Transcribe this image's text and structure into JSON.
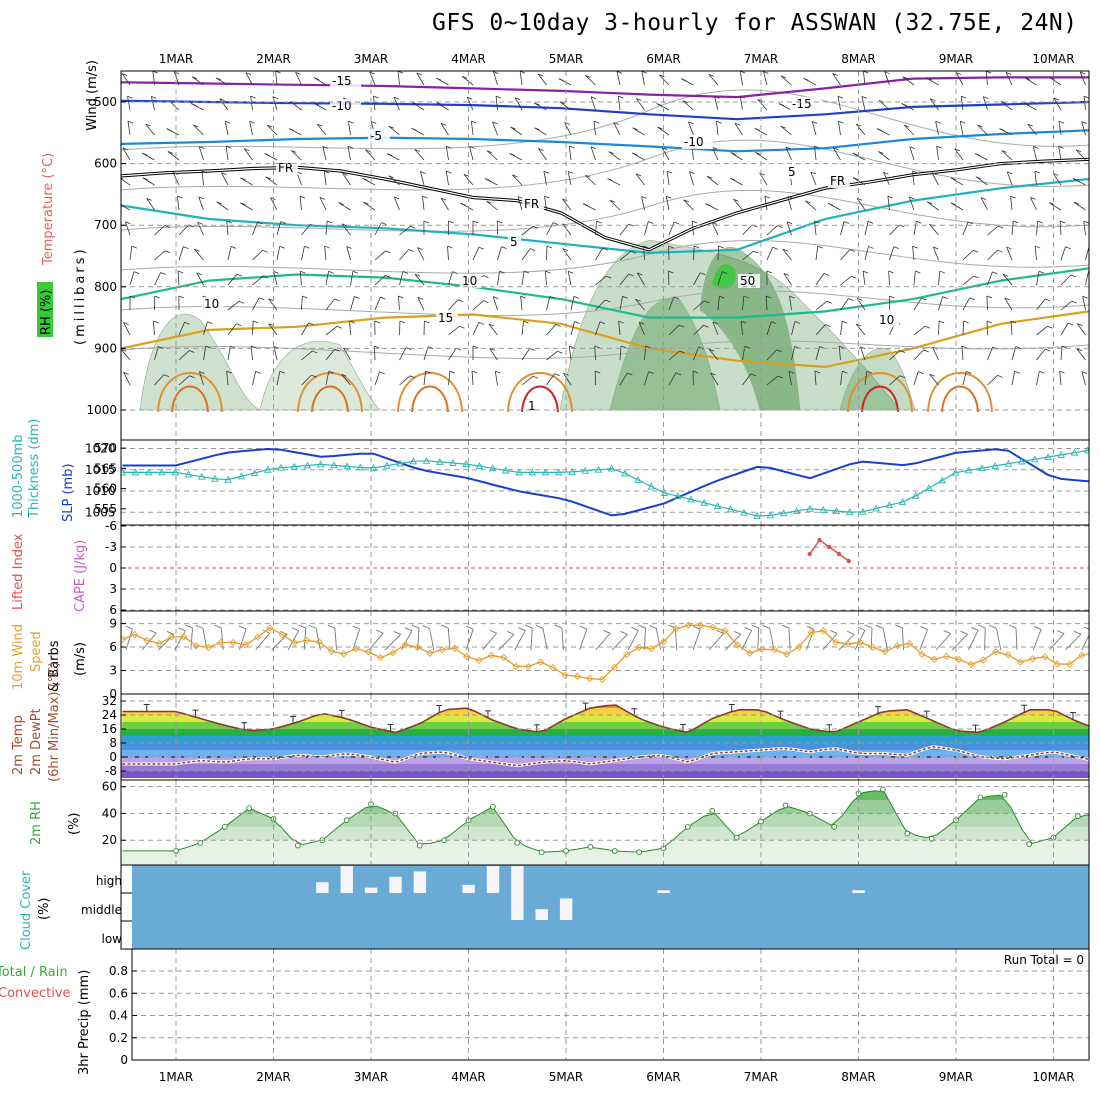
{
  "title": "GFS 0~10day 3-hourly for ASSWAN (32.75E, 24N)",
  "day_labels": [
    "1MAR",
    "2MAR",
    "3MAR",
    "4MAR",
    "5MAR",
    "6MAR",
    "7MAR",
    "8MAR",
    "9MAR",
    "10MAR"
  ],
  "colors": {
    "slp": "#1a3fcc",
    "thickness": "#2ab5b5",
    "wind10m": "#e8a030",
    "dewpoint": "#8b4a3a",
    "rh2m": "#3aa83a",
    "cloud_bg": "#6aabd6",
    "cloud_fill": "#f4f4f9",
    "lifted_index": "#e05050"
  },
  "panels": {
    "upper": {
      "labels": [
        "Wind (m/s)",
        "Temperature (°C)",
        "RH (%)",
        "(millibars)"
      ],
      "ticks": [
        "500",
        "600",
        "700",
        "800",
        "900",
        "1000"
      ],
      "contour_labels": {
        "fr": "FR",
        "t_minus15": "-15",
        "t_minus10": "-10",
        "t_minus5": "-5",
        "t_5": "5",
        "t_10": "10",
        "t_15": "15",
        "rh_10": "10",
        "rh_50": "50",
        "t_1": "1"
      }
    },
    "slp": {
      "labels": [
        "1000-500mb",
        "Thickness (dm)",
        "SLP (mb)"
      ],
      "left_ticks": [
        "570",
        "565",
        "560",
        "555"
      ],
      "right_ticks": [
        "1020",
        "1015",
        "1010",
        "1005"
      ]
    },
    "li": {
      "labels": [
        "Lifted Index",
        "CAPE (J/kg)"
      ],
      "ticks": [
        "-6",
        "-3",
        "0",
        "3",
        "6"
      ]
    },
    "wind": {
      "labels": [
        "10m Wind",
        "Speed",
        "& Barbs",
        "(m/s)"
      ],
      "ticks": [
        "9",
        "6",
        "3",
        "0"
      ]
    },
    "temp": {
      "labels": [
        "2m Temp",
        "2m DewPt",
        "(6hr Min/Max) (°C)"
      ],
      "ticks": [
        "32",
        "24",
        "16",
        "8",
        "0",
        "-8"
      ]
    },
    "rh": {
      "labels": [
        "2m RH",
        "(%)"
      ],
      "ticks": [
        "60",
        "40",
        "20"
      ]
    },
    "cloud": {
      "labels": [
        "Cloud Cover",
        "(%)"
      ],
      "ticks": [
        "high",
        "middle",
        "low"
      ]
    },
    "precip": {
      "labels": [
        "Total / Rain",
        "Convective",
        "3hr Precip (mm)"
      ],
      "ticks": [
        "0.8",
        "0.6",
        "0.4",
        "0.2",
        "0"
      ],
      "run_total": "Run Total = 0"
    }
  },
  "chart_data": [
    {
      "type": "line",
      "title": "Upper air (Wind / Temperature / RH vs pressure)",
      "ylabel": "(millibars)",
      "ylim": [
        1000,
        450
      ],
      "y_ticks": [
        500,
        600,
        700,
        800,
        900,
        1000
      ],
      "freezing_level_mb": [
        620,
        615,
        612,
        608,
        606,
        612,
        625,
        640,
        655,
        660,
        680,
        720,
        740,
        705,
        680,
        660,
        640,
        630,
        618,
        610,
        600,
        596,
        593
      ],
      "temp_contours": [
        {
          "name": "-15",
          "mb": [
            468,
            470,
            472,
            474,
            478,
            482,
            488,
            492,
            478,
            462,
            460,
            460
          ]
        },
        {
          "name": "-10",
          "mb": [
            498,
            500,
            502,
            503,
            505,
            510,
            520,
            528,
            520,
            508,
            504,
            500
          ]
        },
        {
          "name": "-5",
          "mb": [
            568,
            565,
            560,
            558,
            560,
            565,
            572,
            580,
            575,
            560,
            552,
            546
          ]
        },
        {
          "name": "5",
          "mb": [
            668,
            690,
            700,
            705,
            715,
            730,
            745,
            740,
            690,
            660,
            640,
            625
          ]
        },
        {
          "name": "10",
          "mb": [
            820,
            790,
            780,
            785,
            800,
            820,
            850,
            850,
            840,
            820,
            790,
            770
          ]
        },
        {
          "name": "15",
          "mb": [
            900,
            870,
            865,
            850,
            845,
            860,
            900,
            920,
            930,
            900,
            860,
            840
          ]
        }
      ],
      "rh_max_pct": 50,
      "wind_speed_ms": [
        5,
        6,
        7,
        8,
        10,
        12,
        15,
        14,
        12,
        10,
        8,
        7
      ]
    },
    {
      "type": "line",
      "title": "1000-500mb Thickness (dm) & SLP (mb)",
      "x": [
        0.0,
        0.5,
        1.0,
        1.5,
        2.0,
        2.5,
        3.0,
        3.5,
        4.0,
        4.5,
        5.0,
        5.5,
        6.0,
        6.5,
        7.0,
        7.5,
        8.0,
        8.5,
        9.0,
        9.5,
        10.0
      ],
      "series": [
        {
          "name": "SLP (mb)",
          "axis": "right",
          "values": [
            1016,
            1019,
            1020,
            1018,
            1019,
            1015,
            1013,
            1010,
            1008,
            1004,
            1007,
            1012,
            1016,
            1013,
            1017,
            1016,
            1019,
            1020,
            1013,
            1012,
            1015
          ]
        },
        {
          "name": "1000-500mb Thickness (dm)",
          "axis": "left",
          "values": [
            564,
            562,
            565,
            566,
            565,
            567,
            566,
            564,
            564,
            565,
            559,
            556,
            553,
            555,
            554,
            557,
            564,
            566,
            568,
            570,
            569
          ]
        }
      ],
      "ylim_left": [
        551,
        572
      ],
      "ylim_right": [
        1002,
        1022
      ]
    },
    {
      "type": "line",
      "title": "Lifted Index / CAPE (J/kg)",
      "series": [
        {
          "name": "Lifted Index",
          "x": [
            6.5,
            6.6,
            6.7,
            6.8,
            6.9
          ],
          "values": [
            -2,
            -4,
            -3,
            -2,
            -1
          ]
        }
      ],
      "ylim": [
        6,
        -6
      ]
    },
    {
      "type": "line",
      "title": "10m Wind Speed & Barbs (m/s)",
      "x": [
        0.0,
        0.5,
        1.0,
        1.5,
        2.0,
        2.5,
        3.0,
        3.5,
        4.0,
        4.3,
        4.5,
        5.0,
        5.4,
        5.8,
        6.2,
        6.6,
        7.0,
        7.5,
        8.0,
        8.5,
        9.0,
        9.5,
        10.0
      ],
      "series": [
        {
          "name": "10m Wind Speed",
          "values": [
            7,
            6,
            8,
            6,
            5,
            6,
            5,
            4,
            3,
            1,
            4,
            7,
            9.5,
            6,
            5,
            8,
            6,
            6,
            4,
            5,
            4,
            5,
            4
          ]
        }
      ],
      "ylim": [
        0,
        10
      ]
    },
    {
      "type": "area",
      "title": "2m Temp / 2m DewPt (6hr Min/Max) (°C)",
      "x": [
        0.0,
        0.25,
        0.5,
        0.75,
        1.0,
        1.25,
        1.5,
        1.75,
        2.0,
        2.25,
        2.5,
        2.75,
        3.0,
        3.25,
        3.5,
        3.75,
        4.0,
        4.25,
        4.5,
        4.75,
        5.0,
        5.25,
        5.5,
        5.75,
        6.0,
        6.25,
        6.5,
        6.75,
        7.0,
        7.25,
        7.5,
        7.75,
        8.0,
        8.25,
        8.5,
        8.75,
        9.0,
        9.25,
        9.5,
        9.75,
        10.0
      ],
      "series": [
        {
          "name": "2m Temp",
          "values": [
            26,
            22,
            18,
            15,
            16,
            20,
            25,
            22,
            17,
            14,
            19,
            27,
            28,
            21,
            16,
            14,
            22,
            28,
            30,
            22,
            17,
            14,
            22,
            27,
            27,
            21,
            16,
            14,
            20,
            26,
            27,
            21,
            15,
            14,
            20,
            27,
            27,
            20,
            15,
            14,
            21
          ]
        },
        {
          "name": "2m DewPt",
          "values": [
            -4,
            -2,
            -3,
            -1,
            -1,
            1,
            0,
            2,
            0,
            -3,
            2,
            3,
            -1,
            -3,
            -5,
            -3,
            -2,
            -4,
            -2,
            0,
            1,
            -3,
            2,
            3,
            4,
            5,
            3,
            5,
            2,
            2,
            1,
            6,
            4,
            0,
            -1,
            1,
            3,
            0,
            -3,
            -2,
            1
          ]
        }
      ],
      "ylim": [
        -12,
        34
      ]
    },
    {
      "type": "area",
      "title": "2m RH (%)",
      "x": [
        0.0,
        0.25,
        0.5,
        0.75,
        1.0,
        1.25,
        1.5,
        1.75,
        2.0,
        2.25,
        2.5,
        2.75,
        3.0,
        3.25,
        3.5,
        3.75,
        4.0,
        4.25,
        4.5,
        4.75,
        5.0,
        5.25,
        5.5,
        5.75,
        6.0,
        6.25,
        6.5,
        6.75,
        7.0,
        7.25,
        7.5,
        7.75,
        8.0,
        8.25,
        8.5,
        8.75,
        9.0,
        9.25,
        9.5,
        9.75,
        10.0
      ],
      "series": [
        {
          "name": "2m RH",
          "values": [
            12,
            18,
            30,
            44,
            36,
            16,
            20,
            35,
            47,
            40,
            16,
            20,
            35,
            45,
            18,
            11,
            12,
            15,
            12,
            11,
            14,
            30,
            42,
            22,
            34,
            46,
            40,
            30,
            55,
            58,
            25,
            21,
            35,
            52,
            54,
            17,
            22,
            38,
            40,
            14,
            20
          ]
        }
      ],
      "ylim": [
        0,
        62
      ]
    },
    {
      "type": "bar",
      "title": "Cloud Cover (%)",
      "series": [
        {
          "name": "high",
          "x": [
            1.5,
            1.75,
            2.0,
            2.25,
            2.5,
            3.0,
            3.25,
            3.5,
            5.0,
            7.0
          ],
          "values": [
            40,
            100,
            20,
            60,
            80,
            30,
            100,
            100,
            10,
            10
          ]
        },
        {
          "name": "middle",
          "x": [
            3.5,
            3.75,
            4.0
          ],
          "values": [
            100,
            40,
            80
          ]
        }
      ],
      "ylim": [
        0,
        100
      ]
    },
    {
      "type": "bar",
      "title": "3hr Precip (mm)",
      "series": [
        {
          "name": "Total / Rain",
          "values": []
        },
        {
          "name": "Convective",
          "values": []
        }
      ],
      "ylim": [
        0,
        1.0
      ],
      "y_ticks": [
        0,
        0.2,
        0.4,
        0.6,
        0.8
      ]
    }
  ]
}
